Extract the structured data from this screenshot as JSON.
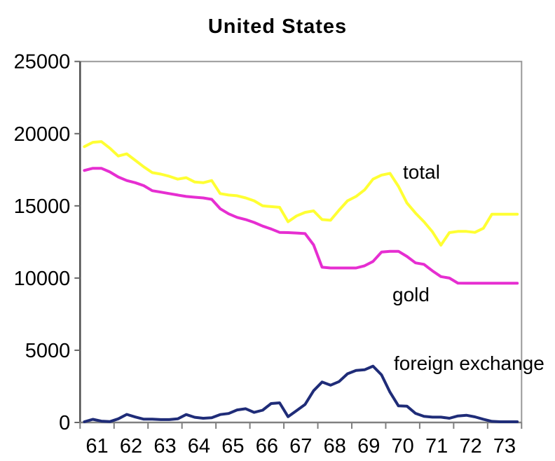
{
  "chart_data": {
    "type": "line",
    "title": "United States",
    "frequency": "quarterly",
    "x_start_year": 1961,
    "x_tick_labels": [
      "61",
      "62",
      "63",
      "64",
      "65",
      "66",
      "67",
      "68",
      "69",
      "70",
      "71",
      "72",
      "73"
    ],
    "ylim": [
      0,
      25000
    ],
    "y_ticks": [
      0,
      5000,
      10000,
      15000,
      20000,
      25000
    ],
    "grid": false,
    "legend_position": "inline-annotations",
    "series": [
      {
        "name": "total",
        "color": "#FFFF33",
        "values": [
          19100,
          19400,
          19450,
          19000,
          18450,
          18600,
          18150,
          17700,
          17300,
          17200,
          17050,
          16850,
          16950,
          16650,
          16600,
          16750,
          15850,
          15750,
          15700,
          15550,
          15350,
          15000,
          14950,
          14900,
          13900,
          14300,
          14550,
          14650,
          14050,
          14000,
          14700,
          15350,
          15650,
          16100,
          16850,
          17130,
          17250,
          16350,
          15200,
          14500,
          13900,
          13200,
          12280,
          13150,
          13230,
          13230,
          13160,
          13450,
          14420,
          14420,
          14420,
          14420
        ]
      },
      {
        "name": "gold",
        "color": "#E62ED1",
        "values": [
          17450,
          17600,
          17600,
          17350,
          17000,
          16750,
          16600,
          16400,
          16050,
          15950,
          15850,
          15750,
          15650,
          15600,
          15550,
          15450,
          14800,
          14450,
          14200,
          14050,
          13850,
          13600,
          13400,
          13160,
          13150,
          13120,
          13080,
          12300,
          10750,
          10700,
          10700,
          10700,
          10700,
          10850,
          11150,
          11800,
          11850,
          11850,
          11500,
          11050,
          10950,
          10500,
          10100,
          10000,
          9650,
          9640,
          9640,
          9640,
          9640,
          9640,
          9640,
          9640
        ]
      },
      {
        "name": "foreign exchange",
        "color": "#1F2C78",
        "values": [
          50,
          220,
          90,
          60,
          250,
          560,
          380,
          230,
          230,
          200,
          200,
          250,
          550,
          360,
          290,
          330,
          550,
          620,
          870,
          950,
          700,
          850,
          1310,
          1360,
          400,
          820,
          1250,
          2200,
          2800,
          2580,
          2830,
          3370,
          3600,
          3650,
          3900,
          3300,
          2100,
          1150,
          1130,
          630,
          420,
          370,
          370,
          290,
          450,
          500,
          390,
          225,
          80,
          50,
          50,
          50
        ]
      }
    ],
    "annotations": [
      {
        "text": "total"
      },
      {
        "text": "gold"
      },
      {
        "text": "foreign exchange"
      }
    ],
    "colors": {
      "plot_border": "#999999",
      "left_axis": "#4d4d4d",
      "bottom_axis": "#808080",
      "tick": "#666666",
      "label_text": "#000000"
    }
  }
}
